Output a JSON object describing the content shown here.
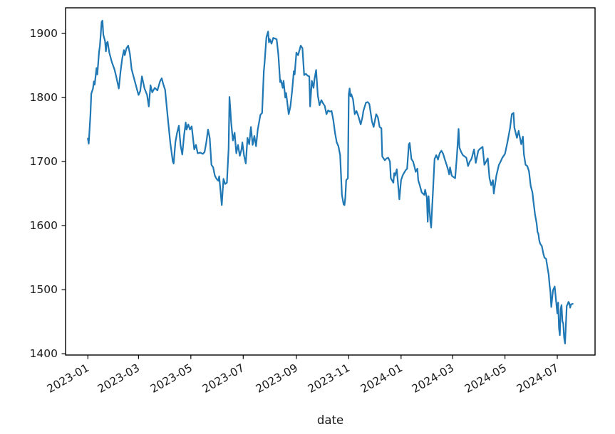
{
  "chart_data": {
    "type": "line",
    "title": "",
    "xlabel": "date",
    "ylabel": "",
    "grid": false,
    "legend": null,
    "line_color": "#1f77b4",
    "axis_color": "#000000",
    "text_color": "#1a1a1a",
    "ylim": [
      1398,
      1940
    ],
    "x_range_days": [
      -26,
      591
    ],
    "x_epoch_label": "2023-01",
    "y_tick_values": [
      1400,
      1500,
      1600,
      1700,
      1800,
      1900
    ],
    "x_ticks": [
      {
        "day": 0,
        "label": "2023-01"
      },
      {
        "day": 59,
        "label": "2023-03"
      },
      {
        "day": 120,
        "label": "2023-05"
      },
      {
        "day": 181,
        "label": "2023-07"
      },
      {
        "day": 243,
        "label": "2023-09"
      },
      {
        "day": 304,
        "label": "2023-11"
      },
      {
        "day": 365,
        "label": "2024-01"
      },
      {
        "day": 425,
        "label": "2024-03"
      },
      {
        "day": 486,
        "label": "2024-05"
      },
      {
        "day": 547,
        "label": "2024-07"
      }
    ],
    "series": [
      {
        "points": [
          [
            0,
            1736
          ],
          [
            1,
            1728
          ],
          [
            3,
            1773
          ],
          [
            4,
            1806
          ],
          [
            6,
            1814
          ],
          [
            7,
            1825
          ],
          [
            8,
            1820
          ],
          [
            10,
            1846
          ],
          [
            11,
            1836
          ],
          [
            13,
            1871
          ],
          [
            14,
            1881
          ],
          [
            16,
            1918
          ],
          [
            17,
            1920
          ],
          [
            18,
            1898
          ],
          [
            20,
            1888
          ],
          [
            21,
            1872
          ],
          [
            22,
            1885
          ],
          [
            23,
            1887
          ],
          [
            25,
            1870
          ],
          [
            28,
            1855
          ],
          [
            31,
            1844
          ],
          [
            33,
            1833
          ],
          [
            36,
            1814
          ],
          [
            38,
            1840
          ],
          [
            40,
            1861
          ],
          [
            42,
            1874
          ],
          [
            43,
            1866
          ],
          [
            45,
            1877
          ],
          [
            47,
            1881
          ],
          [
            49,
            1868
          ],
          [
            51,
            1844
          ],
          [
            54,
            1829
          ],
          [
            57,
            1814
          ],
          [
            59,
            1804
          ],
          [
            61,
            1810
          ],
          [
            63,
            1833
          ],
          [
            66,
            1814
          ],
          [
            69,
            1804
          ],
          [
            71,
            1786
          ],
          [
            73,
            1819
          ],
          [
            75,
            1808
          ],
          [
            78,
            1815
          ],
          [
            81,
            1811
          ],
          [
            84,
            1825
          ],
          [
            86,
            1830
          ],
          [
            88,
            1820
          ],
          [
            90,
            1812
          ],
          [
            93,
            1770
          ],
          [
            96,
            1730
          ],
          [
            99,
            1700
          ],
          [
            100,
            1697
          ],
          [
            102,
            1730
          ],
          [
            104,
            1745
          ],
          [
            106,
            1756
          ],
          [
            108,
            1725
          ],
          [
            110,
            1711
          ],
          [
            112,
            1740
          ],
          [
            114,
            1761
          ],
          [
            115,
            1750
          ],
          [
            117,
            1758
          ],
          [
            119,
            1750
          ],
          [
            121,
            1755
          ],
          [
            124,
            1719
          ],
          [
            126,
            1726
          ],
          [
            128,
            1713
          ],
          [
            131,
            1714
          ],
          [
            134,
            1712
          ],
          [
            136,
            1715
          ],
          [
            138,
            1730
          ],
          [
            140,
            1750
          ],
          [
            142,
            1737
          ],
          [
            144,
            1695
          ],
          [
            146,
            1691
          ],
          [
            148,
            1678
          ],
          [
            150,
            1673
          ],
          [
            152,
            1670
          ],
          [
            153,
            1677
          ],
          [
            156,
            1632
          ],
          [
            158,
            1673
          ],
          [
            160,
            1665
          ],
          [
            162,
            1667
          ],
          [
            164,
            1720
          ],
          [
            165,
            1801
          ],
          [
            166,
            1782
          ],
          [
            167,
            1761
          ],
          [
            169,
            1733
          ],
          [
            171,
            1745
          ],
          [
            173,
            1713
          ],
          [
            175,
            1726
          ],
          [
            177,
            1709
          ],
          [
            179,
            1719
          ],
          [
            180,
            1730
          ],
          [
            182,
            1709
          ],
          [
            184,
            1697
          ],
          [
            186,
            1737
          ],
          [
            188,
            1727
          ],
          [
            190,
            1754
          ],
          [
            192,
            1726
          ],
          [
            194,
            1740
          ],
          [
            196,
            1724
          ],
          [
            198,
            1750
          ],
          [
            201,
            1773
          ],
          [
            203,
            1776
          ],
          [
            205,
            1841
          ],
          [
            206,
            1856
          ],
          [
            208,
            1894
          ],
          [
            210,
            1903
          ],
          [
            211,
            1886
          ],
          [
            212,
            1891
          ],
          [
            214,
            1884
          ],
          [
            216,
            1893
          ],
          [
            218,
            1892
          ],
          [
            220,
            1891
          ],
          [
            222,
            1867
          ],
          [
            224,
            1824
          ],
          [
            225,
            1827
          ],
          [
            227,
            1815
          ],
          [
            228,
            1826
          ],
          [
            230,
            1800
          ],
          [
            231,
            1807
          ],
          [
            234,
            1774
          ],
          [
            236,
            1786
          ],
          [
            238,
            1810
          ],
          [
            240,
            1841
          ],
          [
            241,
            1836
          ],
          [
            243,
            1870
          ],
          [
            245,
            1866
          ],
          [
            248,
            1881
          ],
          [
            250,
            1877
          ],
          [
            252,
            1835
          ],
          [
            254,
            1837
          ],
          [
            256,
            1834
          ],
          [
            258,
            1833
          ],
          [
            259,
            1786
          ],
          [
            261,
            1826
          ],
          [
            263,
            1815
          ],
          [
            264,
            1828
          ],
          [
            266,
            1843
          ],
          [
            268,
            1803
          ],
          [
            270,
            1788
          ],
          [
            272,
            1796
          ],
          [
            274,
            1791
          ],
          [
            276,
            1787
          ],
          [
            278,
            1774
          ],
          [
            280,
            1780
          ],
          [
            282,
            1778
          ],
          [
            284,
            1779
          ],
          [
            286,
            1765
          ],
          [
            288,
            1745
          ],
          [
            290,
            1730
          ],
          [
            292,
            1724
          ],
          [
            294,
            1710
          ],
          [
            296,
            1648
          ],
          [
            298,
            1633
          ],
          [
            299,
            1632
          ],
          [
            300,
            1644
          ],
          [
            301,
            1671
          ],
          [
            303,
            1674
          ],
          [
            304,
            1805
          ],
          [
            305,
            1814
          ],
          [
            306,
            1802
          ],
          [
            307,
            1805
          ],
          [
            309,
            1797
          ],
          [
            311,
            1774
          ],
          [
            313,
            1779
          ],
          [
            315,
            1772
          ],
          [
            318,
            1758
          ],
          [
            320,
            1770
          ],
          [
            321,
            1779
          ],
          [
            324,
            1792
          ],
          [
            326,
            1793
          ],
          [
            328,
            1790
          ],
          [
            331,
            1763
          ],
          [
            333,
            1754
          ],
          [
            336,
            1774
          ],
          [
            338,
            1769
          ],
          [
            340,
            1754
          ],
          [
            342,
            1752
          ],
          [
            343,
            1708
          ],
          [
            346,
            1702
          ],
          [
            348,
            1705
          ],
          [
            350,
            1706
          ],
          [
            352,
            1700
          ],
          [
            353,
            1674
          ],
          [
            356,
            1667
          ],
          [
            357,
            1682
          ],
          [
            358,
            1678
          ],
          [
            360,
            1688
          ],
          [
            363,
            1641
          ],
          [
            365,
            1671
          ],
          [
            367,
            1679
          ],
          [
            370,
            1686
          ],
          [
            372,
            1689
          ],
          [
            374,
            1727
          ],
          [
            375,
            1729
          ],
          [
            377,
            1704
          ],
          [
            379,
            1700
          ],
          [
            381,
            1690
          ],
          [
            382,
            1684
          ],
          [
            384,
            1689
          ],
          [
            385,
            1671
          ],
          [
            387,
            1662
          ],
          [
            389,
            1652
          ],
          [
            392,
            1648
          ],
          [
            393,
            1656
          ],
          [
            395,
            1643
          ],
          [
            396,
            1606
          ],
          [
            397,
            1646
          ],
          [
            399,
            1608
          ],
          [
            400,
            1597
          ],
          [
            402,
            1650
          ],
          [
            404,
            1704
          ],
          [
            406,
            1710
          ],
          [
            408,
            1703
          ],
          [
            410,
            1713
          ],
          [
            412,
            1717
          ],
          [
            414,
            1712
          ],
          [
            416,
            1703
          ],
          [
            418,
            1695
          ],
          [
            420,
            1686
          ],
          [
            421,
            1680
          ],
          [
            422,
            1691
          ],
          [
            424,
            1678
          ],
          [
            426,
            1676
          ],
          [
            428,
            1674
          ],
          [
            430,
            1708
          ],
          [
            432,
            1751
          ],
          [
            433,
            1722
          ],
          [
            435,
            1715
          ],
          [
            437,
            1710
          ],
          [
            439,
            1708
          ],
          [
            441,
            1706
          ],
          [
            443,
            1693
          ],
          [
            445,
            1700
          ],
          [
            447,
            1704
          ],
          [
            450,
            1719
          ],
          [
            452,
            1698
          ],
          [
            455,
            1717
          ],
          [
            457,
            1720
          ],
          [
            460,
            1723
          ],
          [
            462,
            1695
          ],
          [
            464,
            1700
          ],
          [
            466,
            1705
          ],
          [
            468,
            1674
          ],
          [
            470,
            1663
          ],
          [
            472,
            1671
          ],
          [
            473,
            1650
          ],
          [
            476,
            1678
          ],
          [
            479,
            1695
          ],
          [
            481,
            1700
          ],
          [
            483,
            1706
          ],
          [
            486,
            1712
          ],
          [
            489,
            1731
          ],
          [
            492,
            1753
          ],
          [
            494,
            1774
          ],
          [
            496,
            1776
          ],
          [
            497,
            1753
          ],
          [
            500,
            1737
          ],
          [
            502,
            1748
          ],
          [
            505,
            1727
          ],
          [
            507,
            1739
          ],
          [
            508,
            1712
          ],
          [
            510,
            1695
          ],
          [
            512,
            1693
          ],
          [
            514,
            1685
          ],
          [
            516,
            1662
          ],
          [
            518,
            1652
          ],
          [
            519,
            1640
          ],
          [
            521,
            1618
          ],
          [
            523,
            1603
          ],
          [
            524,
            1590
          ],
          [
            525,
            1587
          ],
          [
            526,
            1577
          ],
          [
            527,
            1572
          ],
          [
            529,
            1568
          ],
          [
            531,
            1555
          ],
          [
            532,
            1550
          ],
          [
            534,
            1548
          ],
          [
            535,
            1539
          ],
          [
            537,
            1523
          ],
          [
            538,
            1507
          ],
          [
            539,
            1496
          ],
          [
            540,
            1473
          ],
          [
            542,
            1499
          ],
          [
            544,
            1505
          ],
          [
            546,
            1477
          ],
          [
            547,
            1463
          ],
          [
            548,
            1480
          ],
          [
            549,
            1440
          ],
          [
            550,
            1429
          ],
          [
            551,
            1470
          ],
          [
            552,
            1476
          ],
          [
            553,
            1451
          ],
          [
            554,
            1447
          ],
          [
            555,
            1425
          ],
          [
            556,
            1416
          ],
          [
            557,
            1445
          ],
          [
            558,
            1475
          ],
          [
            559,
            1477
          ],
          [
            560,
            1481
          ],
          [
            561,
            1479
          ],
          [
            562,
            1472
          ],
          [
            563,
            1477
          ],
          [
            565,
            1478
          ]
        ]
      }
    ]
  }
}
